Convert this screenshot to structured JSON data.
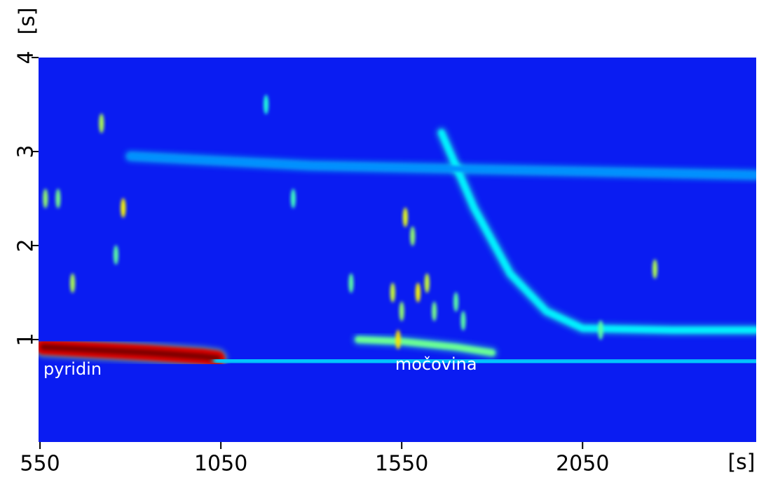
{
  "chart_data": {
    "type": "heatmap",
    "xlabel": "[s]",
    "ylabel": "[s]",
    "xlim": [
      546,
      2530
    ],
    "ylim": [
      -0.09,
      4
    ],
    "xticks": [
      550,
      1050,
      1550,
      2050
    ],
    "yticks": [
      1,
      2,
      3,
      4
    ],
    "background": "#0a1cf2",
    "colormap": "jet",
    "bands": [
      {
        "x": [
          560,
          700,
          850,
          1000,
          1040
        ],
        "y": [
          0.92,
          0.89,
          0.86,
          0.82,
          0.8
        ],
        "intensity": 1
      },
      {
        "x": [
          1040,
          1300,
          1600,
          2050,
          2530
        ],
        "y": [
          0.78,
          0.77,
          0.76,
          0.76,
          0.76
        ],
        "intensity": 0.25
      },
      {
        "x": [
          1430,
          1550,
          1700,
          1800
        ],
        "y": [
          1.0,
          0.98,
          0.92,
          0.86
        ],
        "intensity": 0.45
      },
      {
        "x": [
          1660,
          1750,
          1850,
          1950,
          2050,
          2300,
          2530
        ],
        "y": [
          3.2,
          2.4,
          1.7,
          1.3,
          1.12,
          1.1,
          1.1
        ],
        "intensity": 0.3
      },
      {
        "x": [
          2020,
          2200,
          2400,
          2530
        ],
        "y": [
          0.8,
          0.8,
          0.8,
          0.8
        ],
        "intensity": 0.5
      },
      {
        "x": [
          800,
          1300,
          1900,
          2530
        ],
        "y": [
          2.95,
          2.85,
          2.8,
          2.75
        ],
        "intensity": 0.18
      },
      {
        "x": [
          2050,
          2300,
          2530
        ],
        "y": [
          0.98,
          0.98,
          0.98
        ],
        "intensity": 0.3
      }
    ],
    "peaks": {
      "x": [
        565,
        600,
        640,
        720,
        780,
        760,
        1410,
        1525,
        1540,
        1560,
        1580,
        1595,
        1620,
        1640,
        1700,
        1720,
        2100,
        2250,
        1250,
        1175,
        1550
      ],
      "y": [
        2.5,
        2.5,
        1.6,
        3.3,
        2.4,
        1.9,
        1.6,
        1.5,
        1.0,
        2.3,
        2.1,
        1.5,
        1.6,
        1.3,
        1.4,
        1.2,
        1.1,
        1.75,
        2.5,
        3.5,
        1.3
      ],
      "values": [
        0.4,
        0.35,
        0.45,
        0.45,
        0.6,
        0.3,
        0.3,
        0.5,
        0.65,
        0.55,
        0.4,
        0.6,
        0.5,
        0.35,
        0.3,
        0.3,
        0.3,
        0.45,
        0.25,
        0.2,
        0.4
      ]
    },
    "annotations": [
      {
        "text": "pyridin",
        "x": 640,
        "y": 0.68
      },
      {
        "text": "močovina",
        "x": 1645,
        "y": 0.73
      }
    ]
  }
}
